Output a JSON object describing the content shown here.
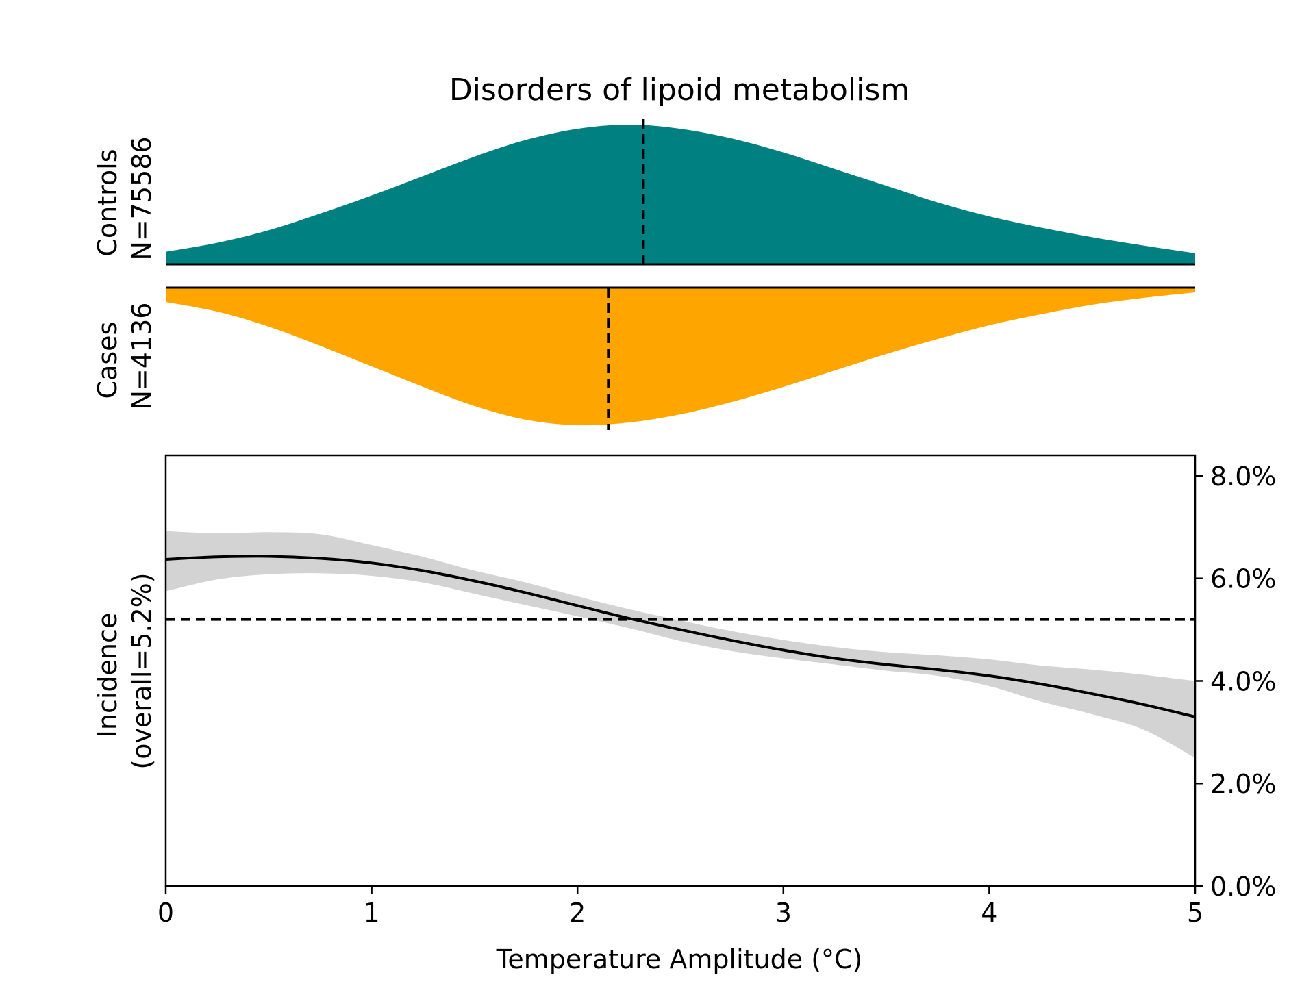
{
  "chart_data": [
    {
      "type": "area",
      "title": "Disorders of lipoid metabolism",
      "panel": "controls-density",
      "ylabel_lines": [
        "Controls",
        "N=75586"
      ],
      "color": "#008080",
      "mean_x": 2.32,
      "xlim": [
        0,
        5
      ],
      "x": [
        0,
        0.25,
        0.5,
        0.75,
        1,
        1.25,
        1.5,
        1.75,
        2,
        2.25,
        2.5,
        2.75,
        3,
        3.25,
        3.5,
        3.75,
        4,
        4.25,
        4.5,
        4.75,
        5
      ],
      "density": [
        0.085,
        0.15,
        0.24,
        0.36,
        0.49,
        0.63,
        0.77,
        0.89,
        0.97,
        1.0,
        0.97,
        0.9,
        0.8,
        0.68,
        0.56,
        0.44,
        0.34,
        0.26,
        0.19,
        0.13,
        0.075
      ]
    },
    {
      "type": "area",
      "panel": "cases-density",
      "ylabel_lines": [
        "Cases",
        "N=4136"
      ],
      "color": "#FFA500",
      "mean_x": 2.15,
      "xlim": [
        0,
        5
      ],
      "x": [
        0,
        0.25,
        0.5,
        0.75,
        1,
        1.25,
        1.5,
        1.75,
        2,
        2.25,
        2.5,
        2.75,
        3,
        3.25,
        3.5,
        3.75,
        4,
        4.25,
        4.5,
        4.75,
        5
      ],
      "density": [
        0.1,
        0.17,
        0.28,
        0.42,
        0.57,
        0.72,
        0.86,
        0.96,
        1.0,
        0.98,
        0.92,
        0.83,
        0.72,
        0.6,
        0.48,
        0.37,
        0.27,
        0.19,
        0.12,
        0.07,
        0.03
      ]
    },
    {
      "type": "line",
      "panel": "incidence",
      "ylabel_lines": [
        "Incidence",
        "(overall=5.2%)"
      ],
      "xlabel": "Temperature Amplitude (°C)",
      "xlim": [
        0,
        5
      ],
      "ylim": [
        0,
        8.4
      ],
      "xticks": [
        "0",
        "1",
        "2",
        "3",
        "4",
        "5"
      ],
      "yticks": [
        "0.0%",
        "2.0%",
        "4.0%",
        "6.0%",
        "8.0%"
      ],
      "yaxis_side": "right",
      "overall_percent": 5.2,
      "x": [
        0,
        0.25,
        0.5,
        0.75,
        1,
        1.25,
        1.5,
        1.75,
        2,
        2.25,
        2.5,
        2.75,
        3,
        3.25,
        3.5,
        3.75,
        4,
        4.25,
        4.5,
        4.75,
        5
      ],
      "incidence": [
        6.37,
        6.42,
        6.43,
        6.39,
        6.3,
        6.15,
        5.95,
        5.72,
        5.47,
        5.22,
        5.0,
        4.79,
        4.6,
        4.44,
        4.32,
        4.22,
        4.1,
        3.94,
        3.75,
        3.54,
        3.3
      ],
      "ci_lower": [
        5.75,
        5.98,
        6.08,
        6.1,
        6.05,
        5.92,
        5.7,
        5.48,
        5.26,
        5.03,
        4.78,
        4.58,
        4.44,
        4.32,
        4.2,
        4.1,
        3.9,
        3.6,
        3.35,
        3.05,
        2.5
      ],
      "ci_upper": [
        6.92,
        6.88,
        6.9,
        6.86,
        6.65,
        6.42,
        6.15,
        5.92,
        5.65,
        5.4,
        5.18,
        4.97,
        4.8,
        4.66,
        4.56,
        4.5,
        4.42,
        4.3,
        4.22,
        4.12,
        4.0
      ],
      "band_color": "#D3D3D3",
      "line_color": "#000000"
    }
  ]
}
